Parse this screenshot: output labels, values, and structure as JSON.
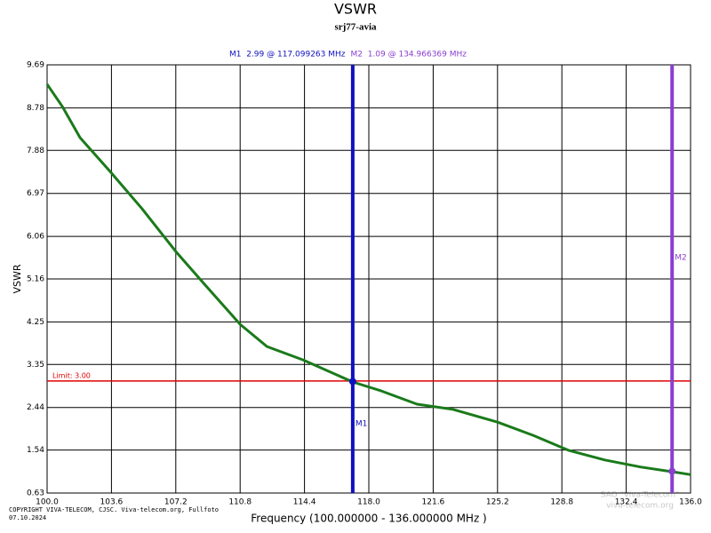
{
  "chart_data": {
    "type": "line",
    "title": "VSWR",
    "subtitle": "srj77-avia",
    "x_label": "Frequency (100.000000 - 136.000000 MHz )",
    "y_label": "VSWR",
    "x": [
      100,
      100.85,
      101.84,
      103.6,
      105.3,
      107.2,
      108.8,
      110.8,
      112.3,
      114.3,
      117.1,
      118.7,
      120.7,
      122.7,
      125.2,
      127.2,
      129.2,
      131.2,
      133.2,
      135.0,
      136.0
    ],
    "series": [
      {
        "name": "VSWR",
        "color": "#1a7a1a",
        "values": [
          9.28,
          8.81,
          8.15,
          7.4,
          6.65,
          5.74,
          5.05,
          4.2,
          3.73,
          3.45,
          2.98,
          2.79,
          2.51,
          2.4,
          2.13,
          1.85,
          1.53,
          1.33,
          1.18,
          1.08,
          1.02
        ]
      }
    ],
    "xlim": [
      100,
      136
    ],
    "xticks": [
      {
        "value": 100,
        "label": "100.0"
      },
      103.6,
      107.2,
      110.8,
      114.4,
      {
        "value": 118,
        "label": "118.0"
      },
      121.6,
      125.2,
      128.8,
      132.4,
      {
        "value": 136,
        "label": "136.0"
      }
    ],
    "ylim": [
      0.63,
      9.69
    ],
    "yticks": [
      0.63,
      1.54,
      2.44,
      3.35,
      4.25,
      5.16,
      6.06,
      6.97,
      7.88,
      8.78,
      9.69
    ],
    "grid": true,
    "limit": {
      "value": 3.0,
      "label": "Limit: 3.00",
      "color": "#e00000"
    },
    "markers": [
      {
        "name": "M1",
        "x": 117.099263,
        "y": 2.99,
        "readout": "M1  2.99 @ 117.099263 MHz",
        "color": "#1010c0"
      },
      {
        "name": "M2",
        "x": 134.966369,
        "y": 1.09,
        "readout": "M2  1.09 @ 134.966369 MHz",
        "color": "#8a3fd0"
      }
    ],
    "copyright": "COPYRIGHT VIVA-TELECOM, CJSC. Viva-telecom.org, Fullfoto",
    "date": "07.10.2024",
    "watermark": [
      "SAO \"Viva-Telecom\"",
      "viva-telecom.org"
    ]
  }
}
